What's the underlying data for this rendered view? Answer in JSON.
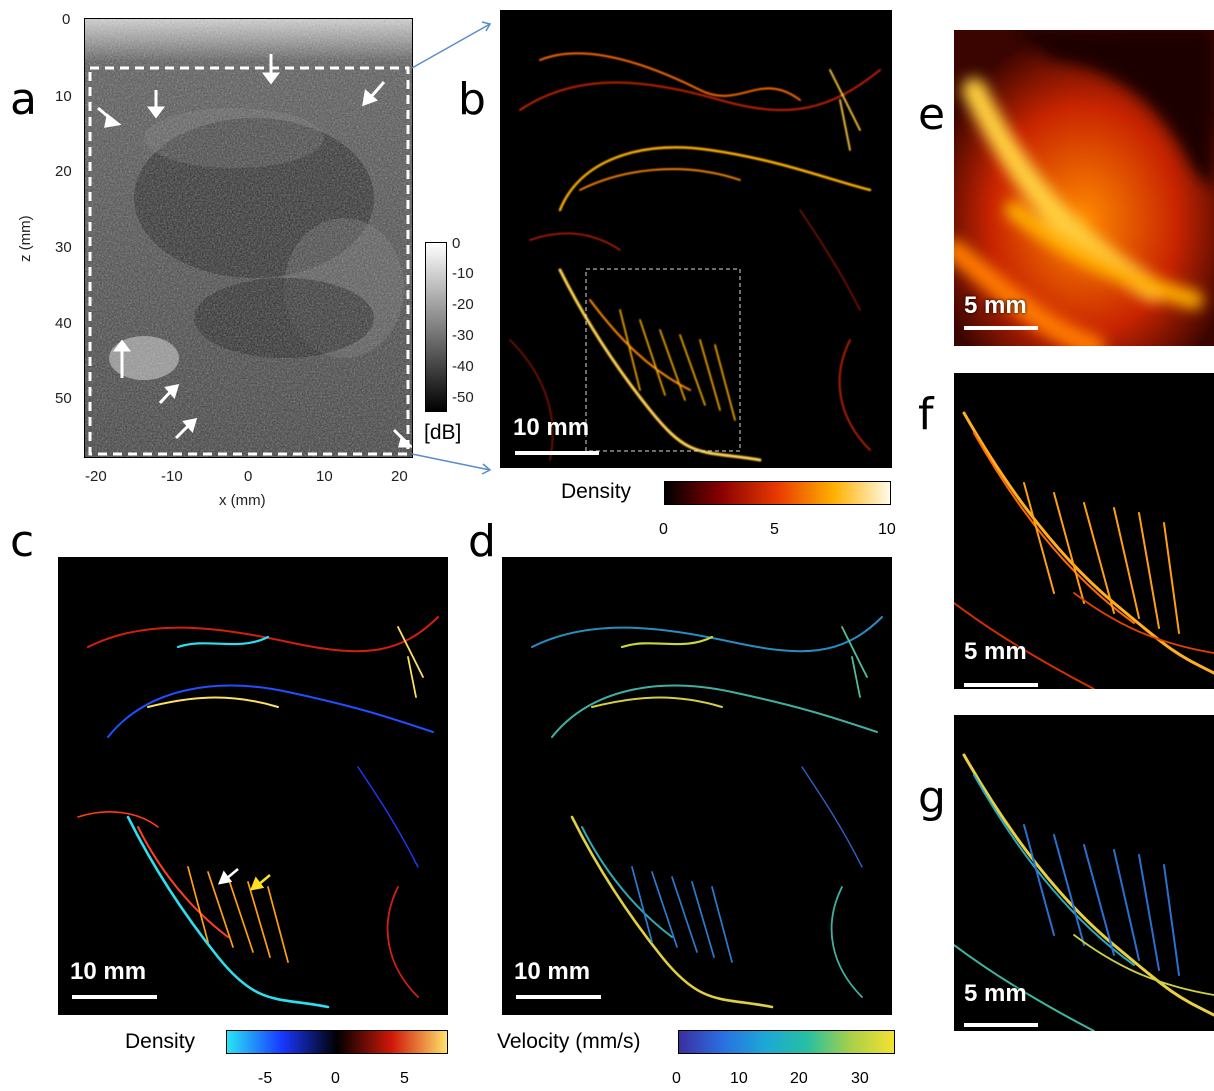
{
  "panels": {
    "a": {
      "label": "a",
      "x_ticks": [
        "-20",
        "-10",
        "0",
        "10",
        "20"
      ],
      "z_ticks": [
        "0",
        "10",
        "20",
        "30",
        "40",
        "50"
      ],
      "x_label": "x (mm)",
      "z_label": "z (mm)",
      "colorbar_ticks": [
        "0",
        "-10",
        "-20",
        "-30",
        "-40",
        "-50"
      ],
      "colorbar_unit": "[dB]"
    },
    "b": {
      "label": "b",
      "scale_text": "10 mm",
      "colorbar_title": "Density",
      "colorbar_ticks": [
        "0",
        "5",
        "10"
      ]
    },
    "c": {
      "label": "c",
      "scale_text": "10 mm",
      "colorbar_title": "Density",
      "colorbar_ticks": [
        "-5",
        "0",
        "5"
      ]
    },
    "d": {
      "label": "d",
      "scale_text": "10 mm",
      "colorbar_title": "Velocity (mm/s)",
      "colorbar_ticks": [
        "0",
        "10",
        "20",
        "30"
      ]
    },
    "e": {
      "label": "e",
      "scale_text": "5 mm"
    },
    "f": {
      "label": "f",
      "scale_text": "5 mm"
    },
    "g": {
      "label": "g",
      "scale_text": "5 mm"
    }
  },
  "colors": {
    "gray_top": "#ffffff",
    "gray_bottom": "#000000",
    "hot_start": "#000000",
    "hot_mid": "#d42a00",
    "hot_end": "#fffbe8",
    "velocity_start": "#3b2fa0",
    "velocity_end": "#f5e132",
    "density_signed_neg": "#29e4f4",
    "density_signed_pos": "#ffe36a",
    "connector": "#5a8cc8"
  }
}
